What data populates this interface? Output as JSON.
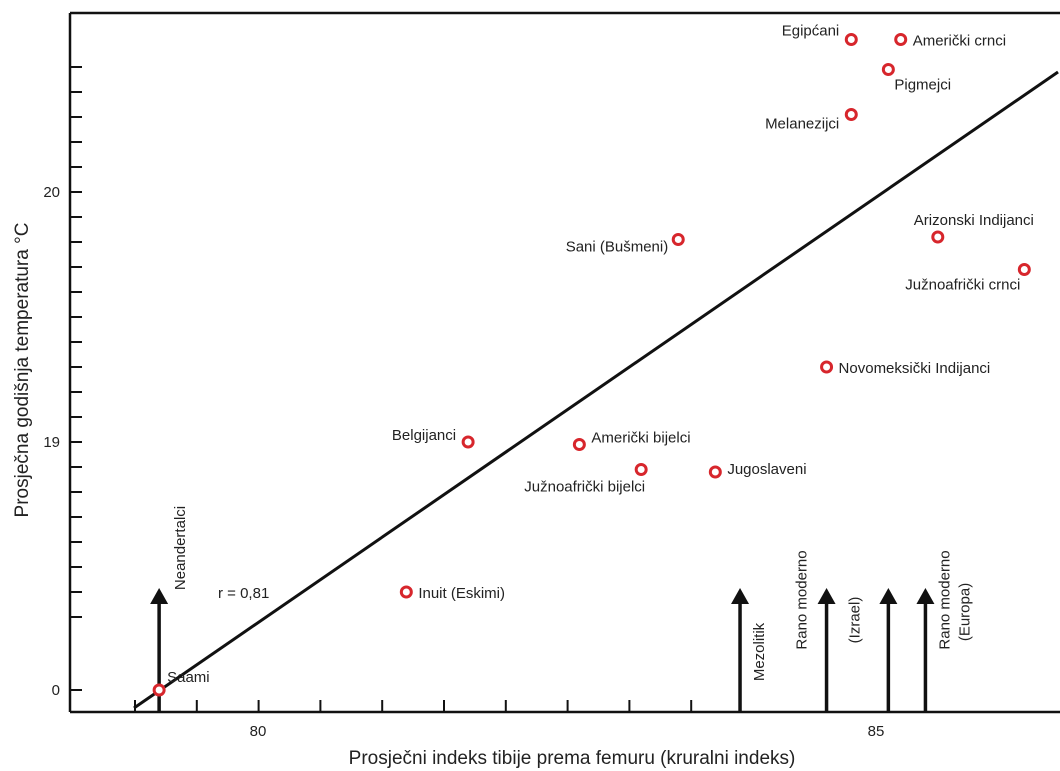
{
  "chart_data": {
    "type": "scatter",
    "title": "",
    "xlabel": "Prosječni indeks tibije prema femuru (kruralni indeks)",
    "ylabel": "Prosječna godišnja temperatura °C",
    "x_ticks": [
      80,
      85
    ],
    "y_ticks": [
      0,
      19,
      20
    ],
    "y_tick_labels": [
      "0",
      "19",
      "20"
    ],
    "xlim": [
      78.8,
      87.3
    ],
    "y_axis_note": "broken axis: 0 shown at bottom, 19–20 scale above",
    "correlation_label": "r = 0,81",
    "marker_color": "#d7262c",
    "line_color": "#111111",
    "points": [
      {
        "label": "Saami",
        "x": 79.2,
        "y": 0.0
      },
      {
        "label": "Inuit (Eskimi)",
        "x": 81.2,
        "y": 18.4
      },
      {
        "label": "Belgijanci",
        "x": 81.7,
        "y": 19.0
      },
      {
        "label": "Američki bijelci",
        "x": 82.6,
        "y": 18.99
      },
      {
        "label": "Južnoafrički bijelci",
        "x": 83.1,
        "y": 18.89
      },
      {
        "label": "Jugoslaveni",
        "x": 83.7,
        "y": 18.88
      },
      {
        "label": "Sani (Bušmeni)",
        "x": 83.4,
        "y": 19.81
      },
      {
        "label": "Novomeksički Indijanci",
        "x": 84.6,
        "y": 19.3
      },
      {
        "label": "Melanezijci",
        "x": 84.8,
        "y": 20.31
      },
      {
        "label": "Egipćani",
        "x": 84.8,
        "y": 20.61
      },
      {
        "label": "Američki crnci",
        "x": 85.2,
        "y": 20.61
      },
      {
        "label": "Pigmejci",
        "x": 85.1,
        "y": 20.49
      },
      {
        "label": "Arizonski Indijanci",
        "x": 85.5,
        "y": 19.82
      },
      {
        "label": "Južnoafrički crnci",
        "x": 86.2,
        "y": 19.69
      }
    ],
    "regression_line": {
      "x_start": 79.3,
      "x_end": 87.3
    },
    "arrows": [
      {
        "label": "Neandertalci",
        "x": 79.2
      },
      {
        "label": "Mezolitik",
        "x": 83.9
      },
      {
        "label": "Rano moderno",
        "label2": "(Izrael)",
        "x": 84.6
      },
      {
        "label": "",
        "x": 85.1
      },
      {
        "label": "Rano moderno",
        "label2": "(Europa)",
        "x": 85.4
      }
    ]
  }
}
